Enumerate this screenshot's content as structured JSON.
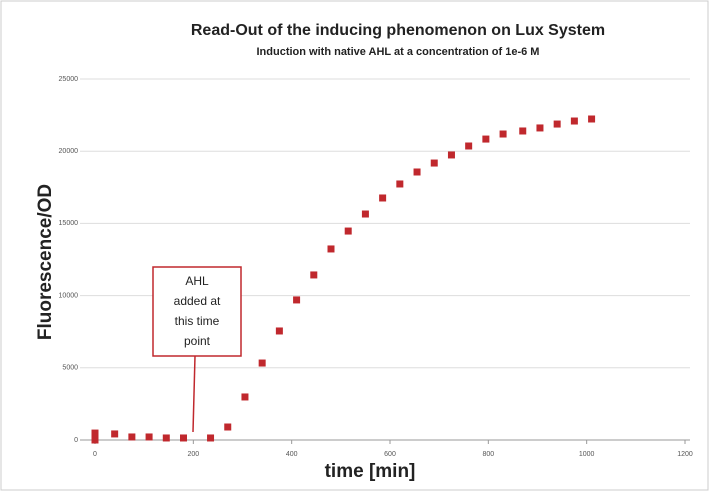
{
  "chart_data": {
    "type": "scatter",
    "title": "Read-Out of the inducing phenomenon on Lux System",
    "subtitle": "Induction with native AHL at a concentration of 1e-6 M",
    "x_label": "time [min]",
    "y_label": "Fluorescence/OD",
    "annotation": [
      "AHL",
      "added at",
      "this time",
      "point"
    ],
    "color": "#c0282d",
    "grid": true,
    "xlim": [
      0,
      1200
    ],
    "xticks": [
      0,
      200,
      400,
      600,
      800,
      1000,
      1200
    ],
    "ylim": [
      0,
      25000
    ],
    "yticks": [
      0,
      5000,
      10000,
      15000,
      20000,
      25000
    ],
    "x": [
      0,
      0,
      40,
      75,
      110,
      145,
      180,
      235,
      270,
      305,
      340,
      375,
      410,
      445,
      480,
      515,
      550,
      585,
      620,
      655,
      690,
      725,
      760,
      795,
      830,
      870,
      905,
      940,
      975,
      1010
    ],
    "values": [
      480,
      0,
      420,
      210,
      210,
      140,
      140,
      140,
      900,
      2980,
      5330,
      7550,
      9700,
      11430,
      13230,
      14470,
      15650,
      16760,
      17730,
      18560,
      19180,
      19740,
      20360,
      20840,
      21190,
      21400,
      21610,
      21880,
      22090,
      22230
    ]
  }
}
